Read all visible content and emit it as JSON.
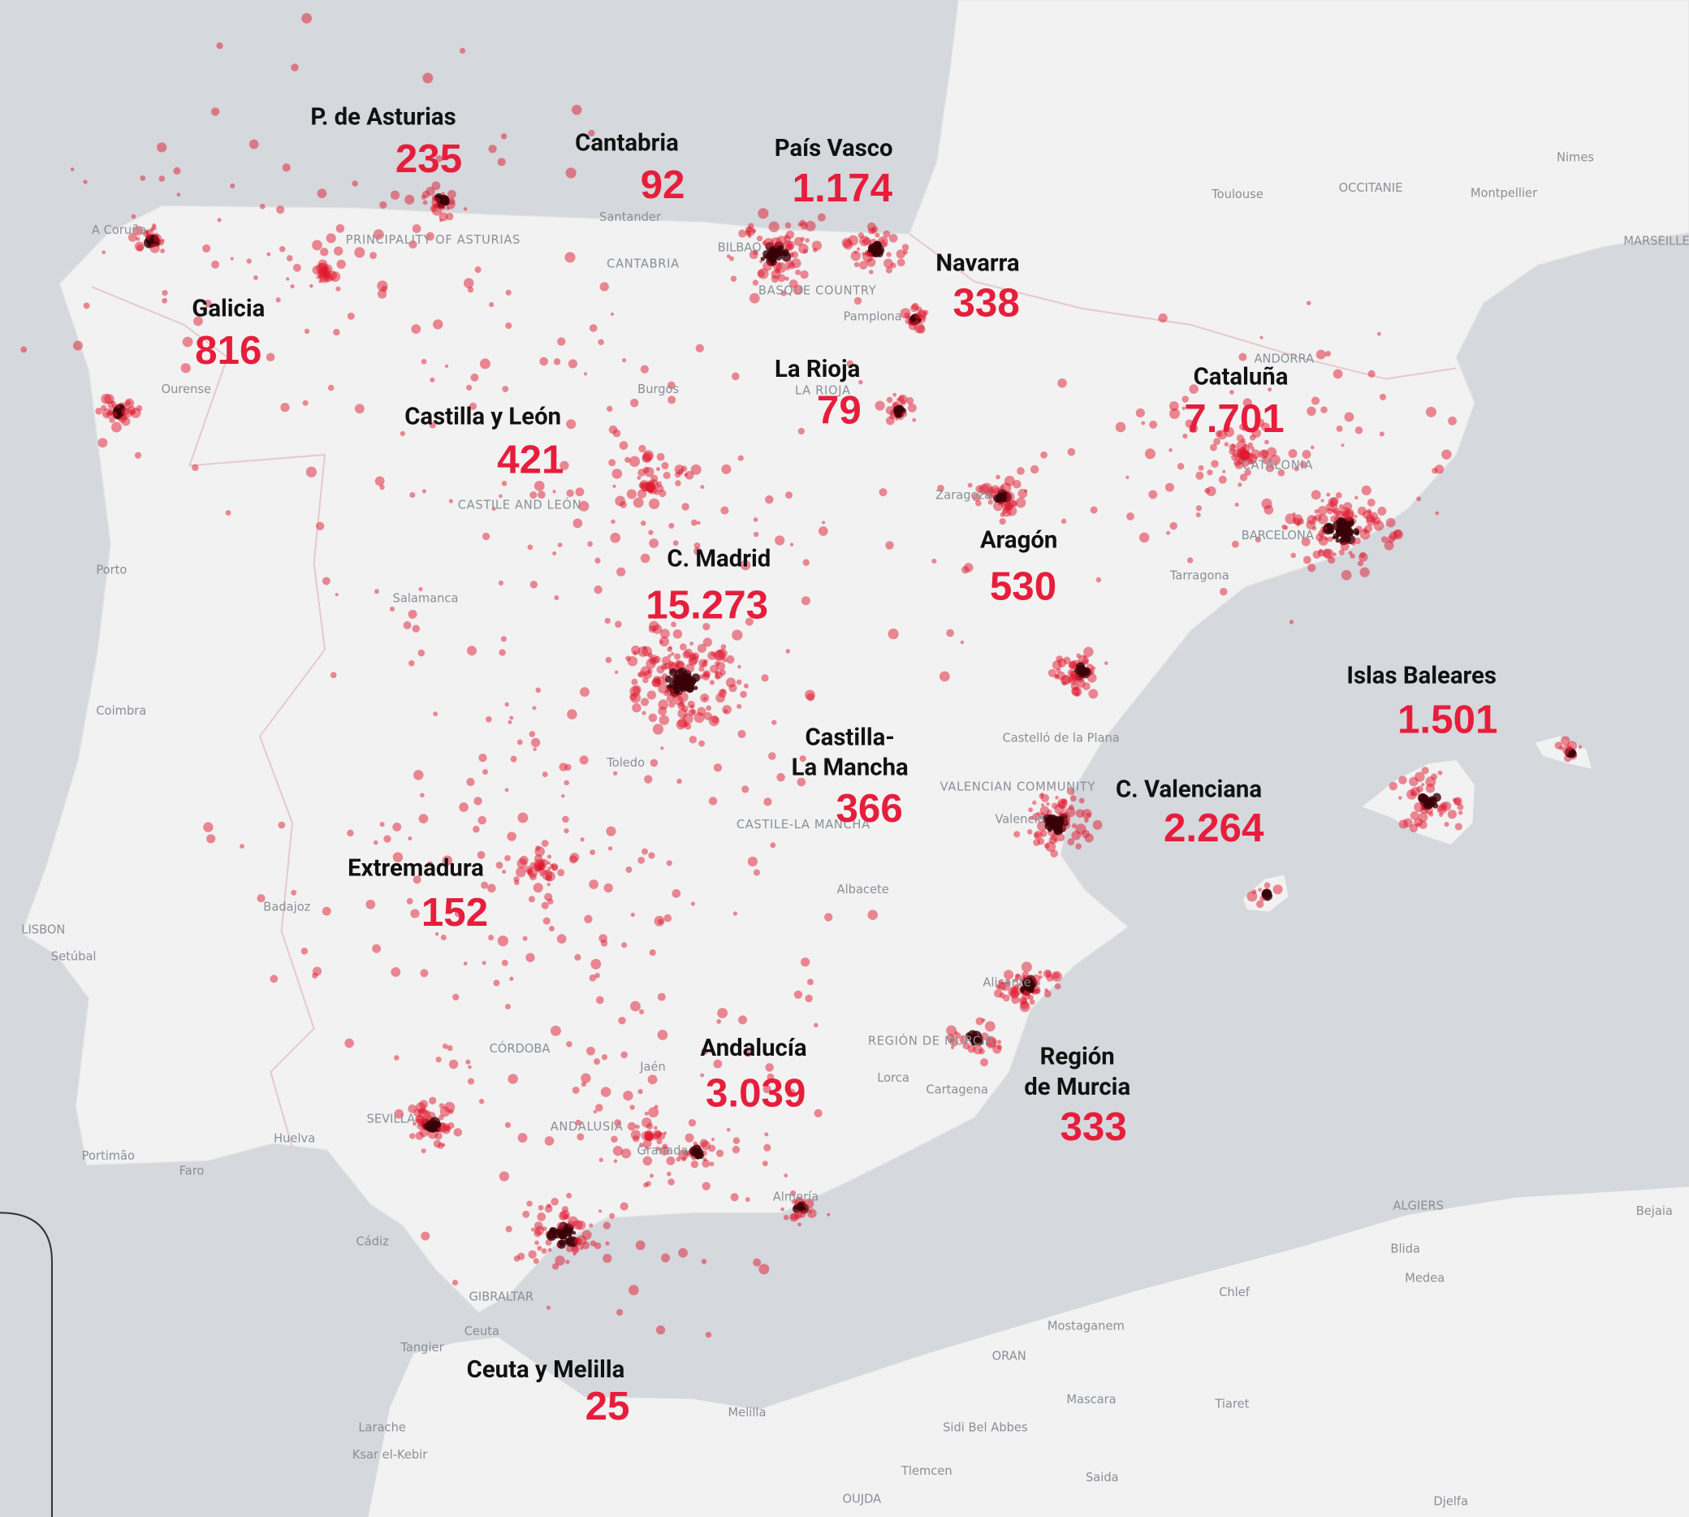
{
  "regions": [
    {
      "name": [
        "P. de Asturias"
      ],
      "value": "235"
    },
    {
      "name": [
        "Cantabria"
      ],
      "value": "92"
    },
    {
      "name": [
        "País Vasco"
      ],
      "value": "1.174"
    },
    {
      "name": [
        "Navarra"
      ],
      "value": "338"
    },
    {
      "name": [
        "Galicia"
      ],
      "value": "816"
    },
    {
      "name": [
        "La Rioja"
      ],
      "value": "79"
    },
    {
      "name": [
        "Castilla y León"
      ],
      "value": "421"
    },
    {
      "name": [
        "Cataluña"
      ],
      "value": "7.701"
    },
    {
      "name": [
        "Aragón"
      ],
      "value": "530"
    },
    {
      "name": [
        "C. Madrid"
      ],
      "value": "15.273"
    },
    {
      "name": [
        "Islas Baleares"
      ],
      "value": "1.501"
    },
    {
      "name": [
        "Castilla-",
        "La Mancha"
      ],
      "value": "366"
    },
    {
      "name": [
        "C. Valenciana"
      ],
      "value": "2.264"
    },
    {
      "name": [
        "Extremadura"
      ],
      "value": "152"
    },
    {
      "name": [
        "Andalucía"
      ],
      "value": "3.039"
    },
    {
      "name": [
        "Región",
        "de Murcia"
      ],
      "value": "333"
    },
    {
      "name": [
        "Ceuta y Melilla"
      ],
      "value": "25"
    }
  ],
  "places": [
    {
      "label": "A Coruña"
    },
    {
      "label": "Ourense"
    },
    {
      "label": "Porto"
    },
    {
      "label": "Coimbra"
    },
    {
      "label": "LISBON"
    },
    {
      "label": "Setúbal"
    },
    {
      "label": "Salamanca"
    },
    {
      "label": "Burgos"
    },
    {
      "label": "Santander"
    },
    {
      "label": "BILBAO"
    },
    {
      "label": "Pamplona"
    },
    {
      "label": "Zaragoza"
    },
    {
      "label": "BARCELONA"
    },
    {
      "label": "Tarragona"
    },
    {
      "label": "ANDORRA"
    },
    {
      "label": "Toulouse"
    },
    {
      "label": "OCCITANIE"
    },
    {
      "label": "Montpellier"
    },
    {
      "label": "Nimes"
    },
    {
      "label": "MARSEILLE"
    },
    {
      "label": "Castelló de la Plana"
    },
    {
      "label": "Valencia"
    },
    {
      "label": "Albacete"
    },
    {
      "label": "Toledo"
    },
    {
      "label": "Badajoz"
    },
    {
      "label": "CÓRDOBA"
    },
    {
      "label": "Jaén"
    },
    {
      "label": "SEVILLA"
    },
    {
      "label": "Huelva"
    },
    {
      "label": "Granada"
    },
    {
      "label": "Almería"
    },
    {
      "label": "Cádiz"
    },
    {
      "label": "GIBRALTAR"
    },
    {
      "label": "Ceuta"
    },
    {
      "label": "Tangier"
    },
    {
      "label": "Larache"
    },
    {
      "label": "Ksar el-Kebir"
    },
    {
      "label": "Melilla"
    },
    {
      "label": "Lorca"
    },
    {
      "label": "Cartagena"
    },
    {
      "label": "Alicante"
    },
    {
      "label": "Portimão"
    },
    {
      "label": "Faro"
    },
    {
      "label": "ALGIERS"
    },
    {
      "label": "Blida"
    },
    {
      "label": "Medea"
    },
    {
      "label": "Chlef"
    },
    {
      "label": "Mostaganem"
    },
    {
      "label": "ORAN"
    },
    {
      "label": "Mascara"
    },
    {
      "label": "Tiaret"
    },
    {
      "label": "Sidi Bel Abbes"
    },
    {
      "label": "Tlemcen"
    },
    {
      "label": "Saida"
    },
    {
      "label": "OUJDA"
    },
    {
      "label": "Djelfa"
    },
    {
      "label": "Bejaia"
    },
    {
      "label": "PRINCIPALITY OF ASTURIAS"
    },
    {
      "label": "CANTABRIA"
    },
    {
      "label": "BASQUE COUNTRY"
    },
    {
      "label": "CASTILE AND LEÓN"
    },
    {
      "label": "CATALONIA"
    },
    {
      "label": "VALENCIAN COMMUNITY"
    },
    {
      "label": "CASTILE-LA MANCHA"
    },
    {
      "label": "REGIÓN DE MURCIA"
    },
    {
      "label": "ANDALUSIA"
    },
    {
      "label": "LA RIOJA"
    }
  ]
}
